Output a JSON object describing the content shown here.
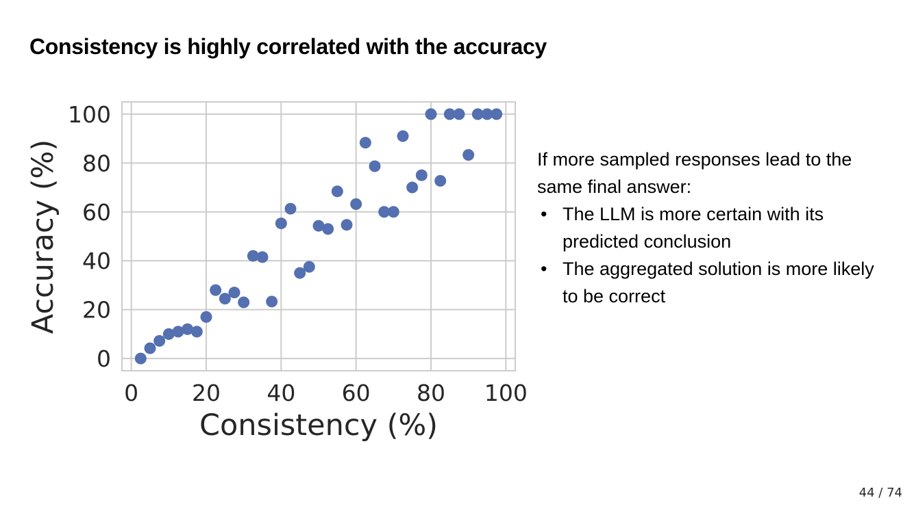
{
  "slide": {
    "title": "Consistency is highly correlated with the accuracy",
    "intro": "If more sampled responses lead to the same final answer:",
    "bullets": [
      "The LLM is more certain with its predicted conclusion",
      "The aggregated solution is more likely to be correct"
    ],
    "page": "44 / 74"
  },
  "chart_data": {
    "type": "scatter",
    "title": "",
    "xlabel": "Consistency (%)",
    "ylabel": "Accuracy (%)",
    "xlim": [
      -2.5,
      102.5
    ],
    "ylim": [
      -5,
      105
    ],
    "xticks": [
      0,
      20,
      40,
      60,
      80,
      100
    ],
    "yticks": [
      0,
      20,
      40,
      60,
      80,
      100
    ],
    "grid": true,
    "color": "#5470b0",
    "points": [
      [
        2.5,
        0
      ],
      [
        5,
        4.2
      ],
      [
        7.5,
        7.2
      ],
      [
        10,
        10
      ],
      [
        12.5,
        11
      ],
      [
        15,
        12
      ],
      [
        17.5,
        11
      ],
      [
        20,
        17
      ],
      [
        22.5,
        28
      ],
      [
        25,
        24.5
      ],
      [
        27.5,
        27
      ],
      [
        30,
        23
      ],
      [
        32.5,
        42
      ],
      [
        35,
        41.5
      ],
      [
        37.5,
        23.3
      ],
      [
        40,
        55.3
      ],
      [
        42.5,
        61.3
      ],
      [
        45,
        35
      ],
      [
        47.5,
        37.5
      ],
      [
        50,
        54.3
      ],
      [
        52.5,
        53
      ],
      [
        55,
        68.4
      ],
      [
        57.5,
        54.7
      ],
      [
        60,
        63.2
      ],
      [
        62.5,
        88.3
      ],
      [
        65,
        78.7
      ],
      [
        67.5,
        60
      ],
      [
        70,
        60
      ],
      [
        72.5,
        91
      ],
      [
        75,
        70
      ],
      [
        77.5,
        75
      ],
      [
        80,
        100
      ],
      [
        82.5,
        72.7
      ],
      [
        85,
        100
      ],
      [
        87.5,
        100
      ],
      [
        90,
        83.3
      ],
      [
        92.5,
        100
      ],
      [
        95,
        100
      ],
      [
        97.5,
        100
      ]
    ]
  }
}
